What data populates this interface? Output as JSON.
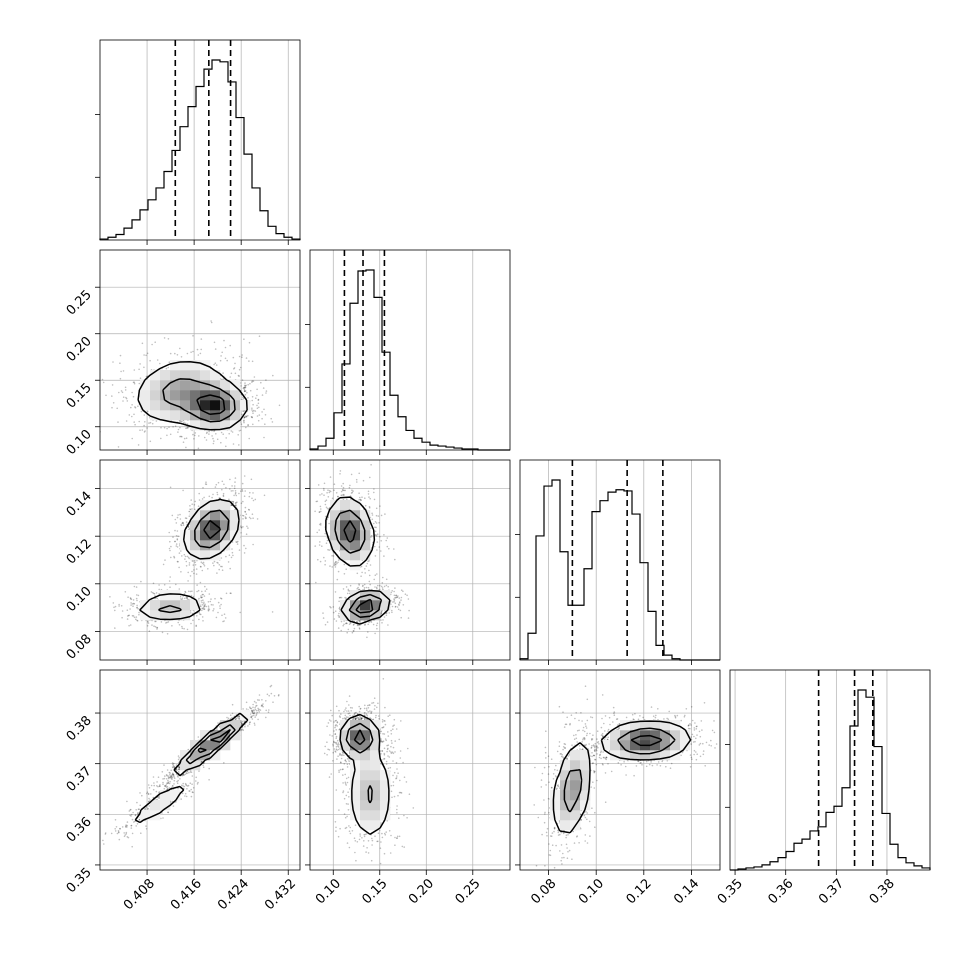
{
  "chart_data": {
    "type": "corner",
    "parameters": [
      {
        "range": [
          0.4,
          0.434
        ],
        "ticks": [
          0.408,
          0.416,
          0.424,
          0.432
        ],
        "tick_labels": [
          "0.408",
          "0.416",
          "0.424",
          "0.432"
        ],
        "quantiles": [
          0.4128,
          0.4185,
          0.4222
        ],
        "hist_peak": 0.4195,
        "hist_width": 0.0042,
        "hist_components": [
          [
            1.0,
            0.4195,
            0.0042
          ]
        ]
      },
      {
        "range": [
          0.075,
          0.29
        ],
        "ticks": [
          0.1,
          0.15,
          0.2,
          0.25
        ],
        "tick_labels": [
          "0.10",
          "0.15",
          "0.20",
          "0.25"
        ],
        "quantiles": [
          0.112,
          0.132,
          0.155
        ],
        "hist_components": [
          [
            1.0,
            0.131,
            0.016
          ],
          [
            0.18,
            0.165,
            0.025
          ]
        ]
      },
      {
        "range": [
          0.068,
          0.152
        ],
        "ticks": [
          0.08,
          0.1,
          0.12,
          0.14
        ],
        "tick_labels": [
          "0.08",
          "0.10",
          "0.12",
          "0.14"
        ],
        "quantiles": [
          0.09,
          0.113,
          0.128
        ],
        "hist_components": [
          [
            0.95,
            0.09,
            0.0045
          ],
          [
            0.97,
            0.124,
            0.0085
          ]
        ]
      },
      {
        "range": [
          0.349,
          0.3885
        ],
        "ticks": [
          0.35,
          0.36,
          0.37,
          0.38
        ],
        "tick_labels": [
          "0.35",
          "0.36",
          "0.37",
          "0.38"
        ],
        "quantiles": [
          0.3665,
          0.3736,
          0.3772
        ],
        "hist_components": [
          [
            1.0,
            0.3745,
            0.0025
          ],
          [
            0.33,
            0.366,
            0.0058
          ]
        ]
      }
    ],
    "hist_step_values": [
      [
        1,
        3,
        6,
        13,
        22,
        33,
        44,
        57,
        75,
        98,
        124,
        146,
        168,
        187,
        197,
        195,
        173,
        134,
        94,
        57,
        32,
        15,
        7,
        3,
        1
      ],
      [
        1,
        4,
        12,
        38,
        88,
        150,
        183,
        184,
        156,
        100,
        56,
        34,
        20,
        12,
        8,
        5,
        4,
        3,
        2,
        1,
        1,
        0,
        0,
        0,
        0
      ],
      [
        1,
        22,
        102,
        143,
        148,
        89,
        45,
        45,
        75,
        122,
        131,
        138,
        140,
        139,
        120,
        80,
        40,
        12,
        4,
        1,
        0,
        0,
        0,
        0,
        0
      ],
      [
        0,
        1,
        2,
        3,
        5,
        8,
        12,
        18,
        26,
        30,
        38,
        42,
        56,
        62,
        80,
        140,
        175,
        168,
        120,
        55,
        25,
        12,
        7,
        4,
        2
      ]
    ],
    "joint_panels": [
      {
        "x_param": 0,
        "y_param": 1,
        "components": [
          [
            1.0,
            0.4195,
            0.122,
            0.0026,
            0.012,
            0.0
          ],
          [
            0.55,
            0.4135,
            0.138,
            0.004,
            0.018,
            0.2
          ]
        ]
      },
      {
        "x_param": 0,
        "y_param": 2,
        "components": [
          [
            1.0,
            0.419,
            0.123,
            0.0022,
            0.006,
            0.35
          ],
          [
            0.55,
            0.412,
            0.09,
            0.003,
            0.0028,
            0.1
          ]
        ]
      },
      {
        "x_param": 1,
        "y_param": 2,
        "components": [
          [
            0.8,
            0.118,
            0.122,
            0.012,
            0.007,
            -0.2
          ],
          [
            1.0,
            0.135,
            0.0905,
            0.012,
            0.003,
            0.3
          ]
        ]
      },
      {
        "x_param": 0,
        "y_param": 3,
        "components": [
          [
            1.0,
            0.419,
            0.374,
            0.003,
            0.0028,
            0.95
          ],
          [
            0.25,
            0.41,
            0.362,
            0.003,
            0.0025,
            0.9
          ]
        ]
      },
      {
        "x_param": 1,
        "y_param": 3,
        "components": [
          [
            1.0,
            0.128,
            0.3752,
            0.01,
            0.002,
            0.0
          ],
          [
            0.45,
            0.14,
            0.364,
            0.012,
            0.0048,
            0.0
          ]
        ]
      },
      {
        "x_param": 2,
        "y_param": 3,
        "components": [
          [
            1.0,
            0.121,
            0.3745,
            0.009,
            0.0018,
            0.1
          ],
          [
            0.65,
            0.09,
            0.365,
            0.004,
            0.0048,
            0.4
          ]
        ]
      }
    ],
    "contour_levels": [
      0.12,
      0.42,
      0.78
    ],
    "grid": true
  }
}
